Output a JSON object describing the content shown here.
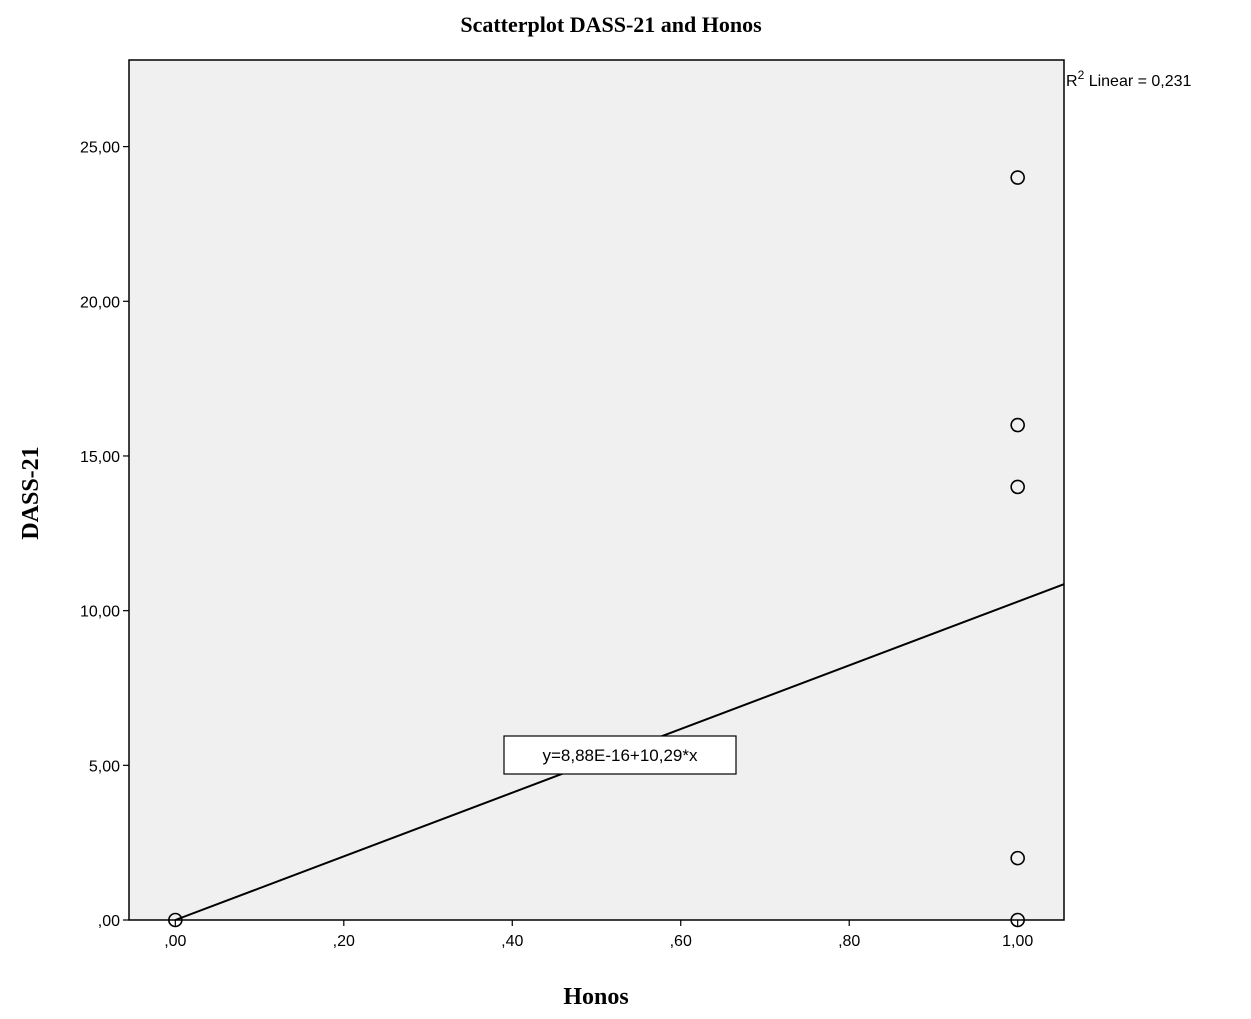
{
  "chart_data": {
    "type": "scatter",
    "title": "Scatterplot DASS-21 and Honos",
    "xlabel": "Honos",
    "ylabel": "DASS-21",
    "xlim": [
      -0.055,
      1.055
    ],
    "ylim": [
      0,
      27.8
    ],
    "x_ticks": [
      0,
      0.2,
      0.4,
      0.6,
      0.8,
      1.0
    ],
    "x_tick_labels": [
      ",00",
      ",20",
      ",40",
      ",60",
      ",80",
      "1,00"
    ],
    "y_ticks": [
      0,
      5,
      10,
      15,
      20,
      25
    ],
    "y_tick_labels": [
      ",00",
      "5,00",
      "10,00",
      "15,00",
      "20,00",
      "25,00"
    ],
    "grid": false,
    "points": [
      {
        "x": 0,
        "y": 0
      },
      {
        "x": 1,
        "y": 24
      },
      {
        "x": 1,
        "y": 16
      },
      {
        "x": 1,
        "y": 14
      },
      {
        "x": 1,
        "y": 2
      },
      {
        "x": 1,
        "y": 0
      }
    ],
    "fit_line": {
      "intercept": 0,
      "slope": 10.29
    },
    "equation_label": "y=8,88E-16+10,29*x",
    "r2_label_prefix": "R",
    "r2_label_sup": "2",
    "r2_label_suffix": " Linear = 0,231",
    "colors": {
      "plot_background": "#f0f0f0",
      "marks": "#000000"
    }
  }
}
